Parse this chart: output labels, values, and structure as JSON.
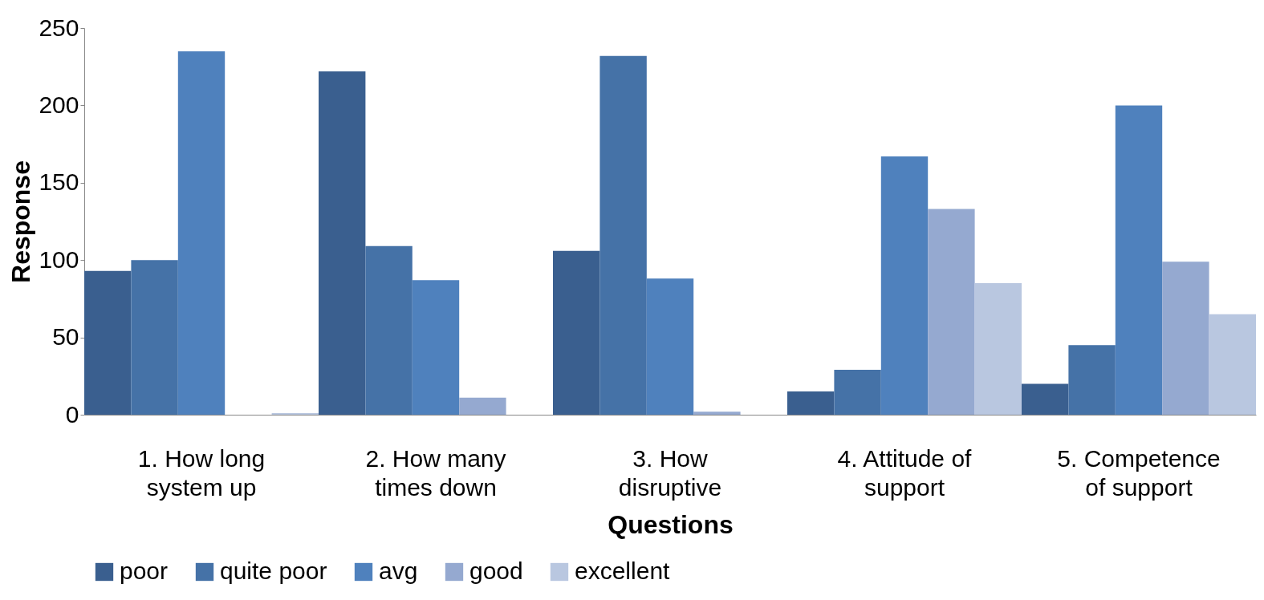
{
  "chart_data": {
    "type": "bar",
    "xlabel": "Questions",
    "ylabel": "Response",
    "categories": [
      "1. How long\nsystem up",
      "2. How many\ntimes down",
      "3. How\ndisruptive",
      "4. Attitude of\nsupport",
      "5. Competence\nof support"
    ],
    "series": [
      {
        "name": "poor",
        "color": "#3a5f8f",
        "values": [
          93,
          222,
          106,
          15,
          20
        ]
      },
      {
        "name": "quite poor",
        "color": "#4572a7",
        "values": [
          100,
          109,
          232,
          29,
          45
        ]
      },
      {
        "name": "avg",
        "color": "#4f81bd",
        "values": [
          235,
          87,
          88,
          167,
          200
        ]
      },
      {
        "name": "good",
        "color": "#95a9d0",
        "values": [
          0,
          11,
          2,
          133,
          99
        ]
      },
      {
        "name": "excellent",
        "color": "#b9c7e0",
        "values": [
          1,
          0,
          0,
          85,
          65
        ]
      }
    ],
    "ylim": [
      0,
      250
    ],
    "yticks": [
      0,
      50,
      100,
      150,
      200,
      250
    ],
    "grid": false,
    "legend": "bottom"
  }
}
